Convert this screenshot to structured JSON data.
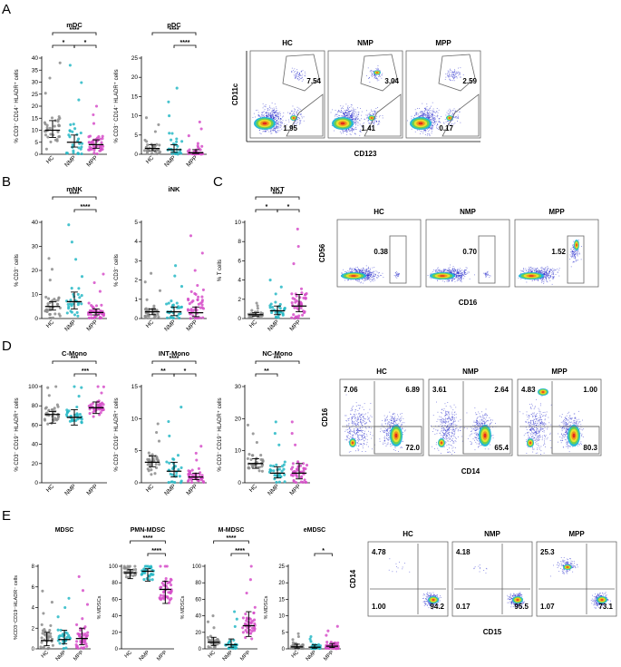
{
  "panels": [
    "A",
    "B",
    "C",
    "D",
    "E"
  ],
  "colors": {
    "HC": "#8c8c8c",
    "NMP": "#27b8c6",
    "MPP": "#d64fc9",
    "median": "#000000"
  },
  "chart_data": [
    {
      "type": "scatter",
      "name": "mDC",
      "title": "mDC",
      "ylabel": "% CD3⁻ CD14⁻ HLADR⁺ cells",
      "categories": [
        "HC",
        "NMP",
        "MPP"
      ],
      "yticks": [
        "0",
        "5",
        "10",
        "15",
        "20",
        "25",
        "30",
        "35",
        "40"
      ],
      "ylim": [
        0,
        40
      ],
      "medians": [
        10,
        5,
        4
      ],
      "q1": [
        7,
        3,
        2.5
      ],
      "q3": [
        14,
        8,
        6
      ],
      "n": [
        35,
        30,
        45
      ],
      "spread": [
        7,
        8,
        4
      ],
      "sig": [
        {
          "from": 0,
          "to": 2,
          "label": "****"
        },
        {
          "from": 0,
          "to": 1,
          "label": "*"
        },
        {
          "from": 1,
          "to": 2,
          "label": "*"
        }
      ]
    },
    {
      "type": "scatter",
      "name": "pDC",
      "title": "pDC",
      "ylabel": "% CD3⁻ CD14⁻ HLADR⁺ cells",
      "categories": [
        "HC",
        "NMP",
        "MPP"
      ],
      "yticks": [
        "0",
        "5",
        "10",
        "15",
        "20",
        "25"
      ],
      "ylim": [
        0,
        25
      ],
      "medians": [
        1.5,
        1.2,
        0.4
      ],
      "q1": [
        0.9,
        0.5,
        0.2
      ],
      "q3": [
        2.5,
        2.5,
        1.2
      ],
      "n": [
        35,
        30,
        45
      ],
      "spread": [
        2,
        4,
        2
      ],
      "sig": [
        {
          "from": 0,
          "to": 2,
          "label": "****"
        },
        {
          "from": 1,
          "to": 2,
          "label": "****"
        }
      ]
    },
    {
      "type": "scatter",
      "name": "mNK",
      "title": "mNK",
      "ylabel": "% CD3⁻ cells",
      "categories": [
        "HC",
        "NMP",
        "MPP"
      ],
      "yticks": [
        "0",
        "10",
        "20",
        "30",
        "40"
      ],
      "ylim": [
        0,
        40
      ],
      "medians": [
        5,
        7,
        2.5
      ],
      "q1": [
        3.5,
        4,
        1.5
      ],
      "q3": [
        7,
        11,
        4
      ],
      "n": [
        35,
        30,
        45
      ],
      "spread": [
        5,
        8,
        4
      ],
      "sig": [
        {
          "from": 0,
          "to": 2,
          "label": "****"
        },
        {
          "from": 1,
          "to": 2,
          "label": "****"
        }
      ]
    },
    {
      "type": "scatter",
      "name": "iNK",
      "title": "iNK",
      "ylabel": "% CD3⁻ cells",
      "categories": [
        "HC",
        "NMP",
        "MPP"
      ],
      "yticks": [
        "0",
        "1",
        "2",
        "3",
        "4",
        "5"
      ],
      "ylim": [
        0,
        5
      ],
      "medians": [
        0.35,
        0.35,
        0.3
      ],
      "q1": [
        0.2,
        0.15,
        0.1
      ],
      "q3": [
        0.5,
        0.6,
        0.6
      ],
      "n": [
        35,
        30,
        45
      ],
      "spread": [
        0.5,
        0.6,
        1.0
      ],
      "sig": []
    },
    {
      "type": "scatter",
      "name": "NKT",
      "title": "NKT",
      "ylabel": "% T cells",
      "categories": [
        "HC",
        "NMP",
        "MPP"
      ],
      "yticks": [
        "0",
        "2",
        "4",
        "6",
        "8",
        "10"
      ],
      "ylim": [
        0,
        10
      ],
      "medians": [
        0.4,
        0.8,
        1.3
      ],
      "q1": [
        0.25,
        0.4,
        0.7
      ],
      "q3": [
        0.6,
        1.3,
        2.5
      ],
      "n": [
        35,
        30,
        45
      ],
      "spread": [
        0.3,
        0.8,
        2.0
      ],
      "sig": [
        {
          "from": 0,
          "to": 2,
          "label": "****"
        },
        {
          "from": 0,
          "to": 1,
          "label": "*"
        },
        {
          "from": 1,
          "to": 2,
          "label": "*"
        }
      ]
    },
    {
      "type": "scatter",
      "name": "C-Mono",
      "title": "C-Mono",
      "ylabel": "% CD3⁻ CD19⁻ HLADR⁺ cells",
      "categories": [
        "HC",
        "NMP",
        "MPP"
      ],
      "yticks": [
        "0",
        "20",
        "40",
        "60",
        "80",
        "100"
      ],
      "ylim": [
        0,
        100
      ],
      "medians": [
        71,
        68,
        78
      ],
      "q1": [
        62,
        60,
        72
      ],
      "q3": [
        74,
        76,
        84
      ],
      "n": [
        35,
        30,
        45
      ],
      "spread": [
        9,
        10,
        7
      ],
      "sig": [
        {
          "from": 0,
          "to": 2,
          "label": "***"
        },
        {
          "from": 1,
          "to": 2,
          "label": "***"
        }
      ]
    },
    {
      "type": "scatter",
      "name": "INT-Mono",
      "title": "INT-Mono",
      "ylabel": "% CD3⁻ CD19⁻ HLADR⁺ cells",
      "categories": [
        "HC",
        "NMP",
        "MPP"
      ],
      "yticks": [
        "0",
        "5",
        "10",
        "15"
      ],
      "ylim": [
        0,
        15
      ],
      "medians": [
        3.2,
        1.8,
        0.9
      ],
      "q1": [
        2.5,
        0.9,
        0.5
      ],
      "q3": [
        4.2,
        3.2,
        1.5
      ],
      "n": [
        35,
        30,
        45
      ],
      "spread": [
        1.5,
        2.5,
        1.2
      ],
      "sig": [
        {
          "from": 0,
          "to": 2,
          "label": "****"
        },
        {
          "from": 0,
          "to": 1,
          "label": "**"
        },
        {
          "from": 1,
          "to": 2,
          "label": "*"
        }
      ]
    },
    {
      "type": "scatter",
      "name": "NC-Mono",
      "title": "NC-Mono",
      "ylabel": "% CD3⁻ CD19⁻ HLADR⁺ cells",
      "categories": [
        "HC",
        "NMP",
        "MPP"
      ],
      "yticks": [
        "0",
        "10",
        "20",
        "30"
      ],
      "ylim": [
        0,
        30
      ],
      "medians": [
        6,
        3,
        3
      ],
      "q1": [
        4.5,
        1.5,
        1.2
      ],
      "q3": [
        7.5,
        5,
        6
      ],
      "n": [
        35,
        30,
        45
      ],
      "spread": [
        3,
        4,
        4
      ],
      "sig": [
        {
          "from": 0,
          "to": 2,
          "label": "***"
        },
        {
          "from": 0,
          "to": 1,
          "label": "**"
        }
      ]
    },
    {
      "type": "scatter",
      "name": "MDSC",
      "title": "MDSC",
      "ylabel": "%CD3⁻CD19⁻HLADR⁻ cells",
      "categories": [
        "HC",
        "NMP",
        "MPP"
      ],
      "yticks": [
        "0",
        "2",
        "4",
        "6",
        "8"
      ],
      "ylim": [
        0,
        8
      ],
      "medians": [
        0.8,
        0.9,
        1.0
      ],
      "q1": [
        0.3,
        0.5,
        0.4
      ],
      "q3": [
        1.6,
        1.8,
        2.0
      ],
      "n": [
        35,
        30,
        45
      ],
      "spread": [
        1.2,
        1.0,
        1.5
      ],
      "sig": []
    },
    {
      "type": "scatter",
      "name": "PMN-MDSC",
      "title": "PMN-MDSC",
      "ylabel": "% MDSCs",
      "categories": [
        "HC",
        "NMP",
        "MPP"
      ],
      "yticks": [
        "0",
        "20",
        "40",
        "60",
        "80",
        "100"
      ],
      "ylim": [
        0,
        100
      ],
      "medians": [
        92,
        94,
        72
      ],
      "q1": [
        85,
        82,
        55
      ],
      "q3": [
        96,
        97,
        82
      ],
      "n": [
        35,
        30,
        45
      ],
      "spread": [
        8,
        10,
        15
      ],
      "sig": [
        {
          "from": 0,
          "to": 2,
          "label": "****"
        },
        {
          "from": 1,
          "to": 2,
          "label": "****"
        }
      ]
    },
    {
      "type": "scatter",
      "name": "M-MDSC",
      "title": "M-MDSC",
      "ylabel": "% MDSCs",
      "categories": [
        "HC",
        "NMP",
        "MPP"
      ],
      "yticks": [
        "0",
        "20",
        "40",
        "60",
        "80",
        "100"
      ],
      "ylim": [
        0,
        100
      ],
      "medians": [
        8,
        5,
        28
      ],
      "q1": [
        4,
        2,
        15
      ],
      "q3": [
        14,
        12,
        45
      ],
      "n": [
        35,
        30,
        45
      ],
      "spread": [
        8,
        10,
        18
      ],
      "sig": [
        {
          "from": 0,
          "to": 2,
          "label": "****"
        },
        {
          "from": 1,
          "to": 2,
          "label": "****"
        }
      ]
    },
    {
      "type": "scatter",
      "name": "eMDSC",
      "title": "eMDSC",
      "ylabel": "% MDSCs",
      "categories": [
        "HC",
        "NMP",
        "MPP"
      ],
      "yticks": [
        "0",
        "5",
        "10",
        "15",
        "20",
        "25"
      ],
      "ylim": [
        0,
        25
      ],
      "medians": [
        0.6,
        0.5,
        0.8
      ],
      "q1": [
        0.2,
        0.2,
        0.4
      ],
      "q3": [
        1.4,
        1.2,
        1.6
      ],
      "n": [
        35,
        30,
        45
      ],
      "spread": [
        1.0,
        0.8,
        1.5
      ],
      "sig": [
        {
          "from": 1,
          "to": 2,
          "label": "*"
        }
      ]
    }
  ],
  "flow": [
    {
      "name": "dc",
      "ylabel": "CD11c",
      "xlabel": "CD123",
      "groups": [
        "HC",
        "NMP",
        "MPP"
      ],
      "gates": [
        {
          "values": [
            "7.54",
            "1.95"
          ]
        },
        {
          "values": [
            "3.04",
            "1.41"
          ]
        },
        {
          "values": [
            "2.59",
            "0.17"
          ]
        }
      ]
    },
    {
      "name": "nk",
      "ylabel": "CD56",
      "xlabel": "CD16",
      "groups": [
        "HC",
        "NMP",
        "MPP"
      ],
      "gates": [
        {
          "values": [
            "0.38"
          ]
        },
        {
          "values": [
            "0.70"
          ]
        },
        {
          "values": [
            "1.52"
          ]
        }
      ]
    },
    {
      "name": "mono",
      "ylabel": "CD16",
      "xlabel": "CD14",
      "groups": [
        "HC",
        "NMP",
        "MPP"
      ],
      "gates": [
        {
          "values": [
            "7.06",
            "6.89",
            "72.0"
          ]
        },
        {
          "values": [
            "3.61",
            "2.64",
            "65.4"
          ]
        },
        {
          "values": [
            "4.83",
            "1.00",
            "80.3"
          ]
        }
      ]
    },
    {
      "name": "mdsc",
      "ylabel": "CD14",
      "xlabel": "CD15",
      "groups": [
        "HC",
        "NMP",
        "MPP"
      ],
      "gates": [
        {
          "values": [
            "4.78",
            "1.00",
            "94.2"
          ]
        },
        {
          "values": [
            "4.18",
            "0.17",
            "95.5"
          ]
        },
        {
          "values": [
            "25.3",
            "1.07",
            "73.1"
          ]
        }
      ]
    }
  ]
}
